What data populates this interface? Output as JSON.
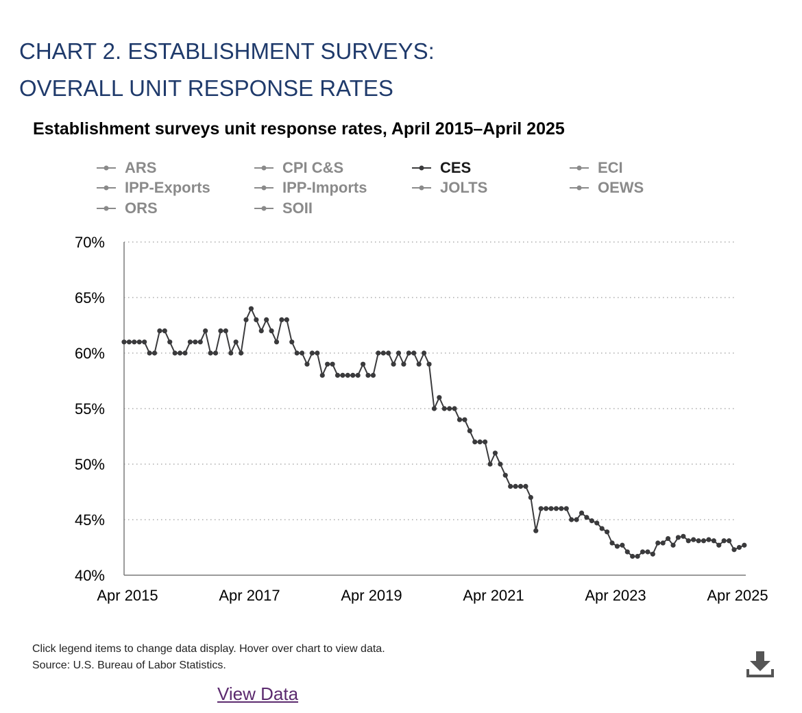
{
  "heading": {
    "line1": "CHART 2. ESTABLISHMENT SURVEYS:",
    "line2": "OVERALL UNIT RESPONSE RATES"
  },
  "chart_data": {
    "type": "line",
    "title": "Establishment surveys unit response rates, April 2015–April 2025",
    "xlabel": "",
    "ylabel": "",
    "x_tick_labels": [
      "Apr 2015",
      "Apr 2017",
      "Apr 2019",
      "Apr 2021",
      "Apr 2023",
      "Apr 2025"
    ],
    "y_tick_labels": [
      "70%",
      "65%",
      "60%",
      "55%",
      "50%",
      "45%",
      "40%"
    ],
    "ylim": [
      40,
      70
    ],
    "xlim": [
      "2015-04",
      "2025-04"
    ],
    "grid": "horizontal dotted",
    "legend_position": "top",
    "series_colors": {
      "active": "#3a3a3c",
      "inactive": "#8a8a8a"
    },
    "legend": [
      {
        "name": "ARS",
        "active": false
      },
      {
        "name": "CPI C&S",
        "active": false
      },
      {
        "name": "CES",
        "active": true
      },
      {
        "name": "ECI",
        "active": false
      },
      {
        "name": "IPP-Exports",
        "active": false
      },
      {
        "name": "IPP-Imports",
        "active": false
      },
      {
        "name": "JOLTS",
        "active": false
      },
      {
        "name": "OEWS",
        "active": false
      },
      {
        "name": "ORS",
        "active": false
      },
      {
        "name": "SOII",
        "active": false
      }
    ],
    "series": [
      {
        "name": "CES",
        "x_start": "2015-04",
        "frequency": "monthly",
        "values": [
          61,
          61,
          61,
          61,
          61,
          60,
          60,
          62,
          62,
          61,
          60,
          60,
          60,
          61,
          61,
          61,
          62,
          60,
          60,
          62,
          62,
          60,
          61,
          60,
          63,
          64,
          63,
          62,
          63,
          62,
          61,
          63,
          63,
          61,
          60,
          60,
          59,
          60,
          60,
          58,
          59,
          59,
          58,
          58,
          58,
          58,
          58,
          59,
          58,
          58,
          60,
          60,
          60,
          59,
          60,
          59,
          60,
          60,
          59,
          60,
          59,
          55,
          56,
          55,
          55,
          55,
          54,
          54,
          53,
          52,
          52,
          52,
          50,
          51,
          50,
          49,
          48,
          48,
          48,
          48,
          47,
          44,
          46,
          46,
          46,
          46,
          46,
          46,
          45,
          45,
          45.6,
          45.2,
          44.9,
          44.7,
          44.2,
          43.9,
          42.9,
          42.6,
          42.7,
          42.1,
          41.7,
          41.7,
          42.1,
          42.1,
          41.9,
          42.9,
          42.9,
          43.3,
          42.7,
          43.4,
          43.5,
          43.1,
          43.2,
          43.1,
          43.1,
          43.2,
          43.1,
          42.7,
          43.1,
          43.1,
          42.3,
          42.5,
          42.7
        ]
      }
    ]
  },
  "footnote": {
    "line1": "Click legend items to change data display. Hover over chart to view data.",
    "line2": "Source: U.S. Bureau of Labor Statistics."
  },
  "download_icon": "download-icon",
  "view_data_label": "View Data"
}
